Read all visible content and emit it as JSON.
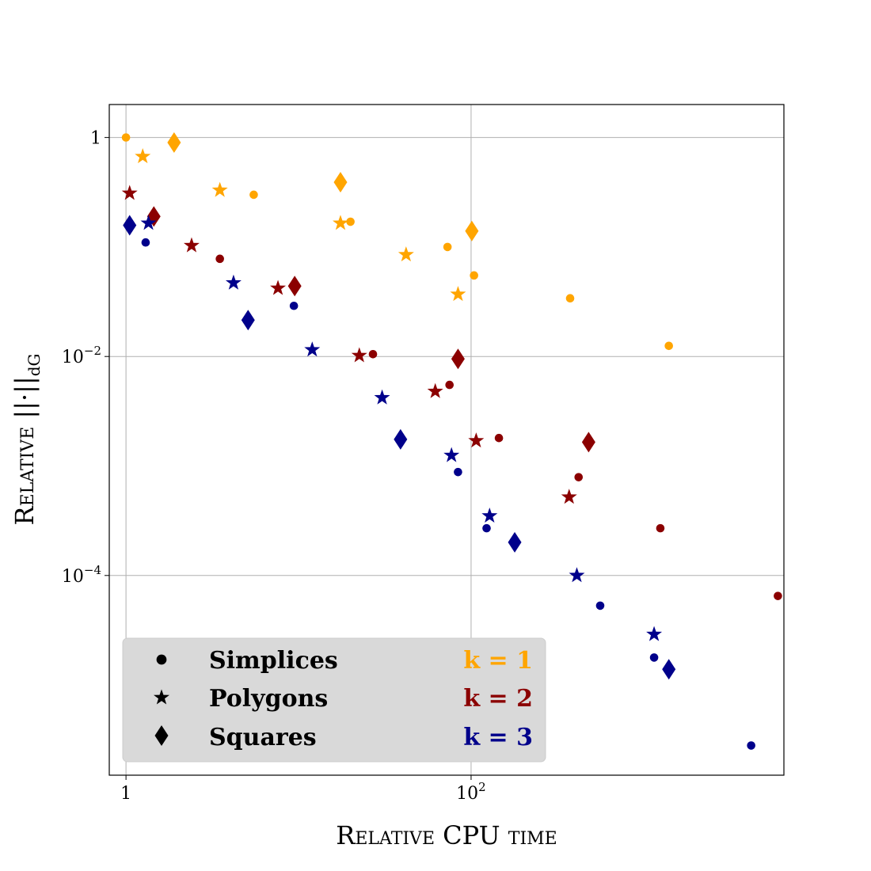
{
  "chart_data": {
    "type": "scatter",
    "title": "",
    "xlabel": "Relative CPU time",
    "ylabel": "Relative ||·||dG",
    "xscale": "log",
    "yscale": "log",
    "xlim": [
      0.8,
      6500
    ],
    "ylim": [
      1.5e-06,
      2
    ],
    "x_ticks": [
      {
        "value": 1,
        "label": "1"
      },
      {
        "value": 100,
        "label": "10^2"
      }
    ],
    "y_ticks": [
      {
        "value": 1,
        "label": "1"
      },
      {
        "value": 0.01,
        "label": "10^-2"
      },
      {
        "value": 0.0001,
        "label": "10^-4"
      }
    ],
    "grid": true,
    "legend": {
      "position": "bottom-left",
      "shapes": [
        {
          "marker": "circle",
          "label": "Simplices"
        },
        {
          "marker": "star",
          "label": "Polygons"
        },
        {
          "marker": "diamond",
          "label": "Squares"
        }
      ],
      "colors": [
        {
          "label": "k = 1",
          "color": "#FFA500"
        },
        {
          "label": "k = 2",
          "color": "#8B0000"
        },
        {
          "label": "k = 3",
          "color": "#00008B"
        }
      ]
    },
    "series": [
      {
        "marker": "circle",
        "color": "#FFA500",
        "k": 1,
        "x": [
          1,
          5.5,
          20,
          73,
          104,
          375,
          1400
        ],
        "y": [
          1,
          0.3,
          0.17,
          0.1,
          0.055,
          0.034,
          0.0125
        ]
      },
      {
        "marker": "star",
        "color": "#FFA500",
        "k": 1,
        "x": [
          1.25,
          3.5,
          17.5,
          42,
          84
        ],
        "y": [
          0.67,
          0.33,
          0.165,
          0.085,
          0.037
        ]
      },
      {
        "marker": "diamond",
        "color": "#FFA500",
        "k": 1,
        "x": [
          1.9,
          17.5,
          101
        ],
        "y": [
          0.9,
          0.39,
          0.14
        ]
      },
      {
        "marker": "circle",
        "color": "#8B0000",
        "k": 2,
        "x": [
          3.5,
          27,
          75,
          145,
          420,
          1250,
          6000
        ],
        "y": [
          0.078,
          0.0105,
          0.0055,
          0.0018,
          0.00079,
          0.00027,
          6.5e-05
        ]
      },
      {
        "marker": "star",
        "color": "#8B0000",
        "k": 2,
        "x": [
          1.05,
          2.4,
          7.6,
          22.5,
          62,
          107,
          370
        ],
        "y": [
          0.31,
          0.103,
          0.042,
          0.0102,
          0.0048,
          0.0017,
          0.00052
        ]
      },
      {
        "marker": "diamond",
        "color": "#8B0000",
        "k": 2,
        "x": [
          1.45,
          9.5,
          84,
          480
        ],
        "y": [
          0.19,
          0.044,
          0.0095,
          0.00165
        ]
      },
      {
        "marker": "circle",
        "color": "#00008B",
        "k": 3,
        "x": [
          1.3,
          9.4,
          84,
          123,
          560,
          1150,
          4200
        ],
        "y": [
          0.11,
          0.029,
          0.00088,
          0.00027,
          5.3e-05,
          1.78e-05,
          2.8e-06
        ]
      },
      {
        "marker": "star",
        "color": "#00008B",
        "k": 3,
        "x": [
          1.35,
          4.2,
          12,
          30.5,
          77,
          128,
          410,
          1150
        ],
        "y": [
          0.165,
          0.047,
          0.0115,
          0.0042,
          0.00125,
          0.00035,
          0.0001,
          2.9e-05
        ]
      },
      {
        "marker": "diamond",
        "color": "#00008B",
        "k": 3,
        "x": [
          1.05,
          5.1,
          39,
          179,
          1400
        ],
        "y": [
          0.158,
          0.0215,
          0.00175,
          0.000201,
          1.39e-05
        ]
      }
    ]
  }
}
